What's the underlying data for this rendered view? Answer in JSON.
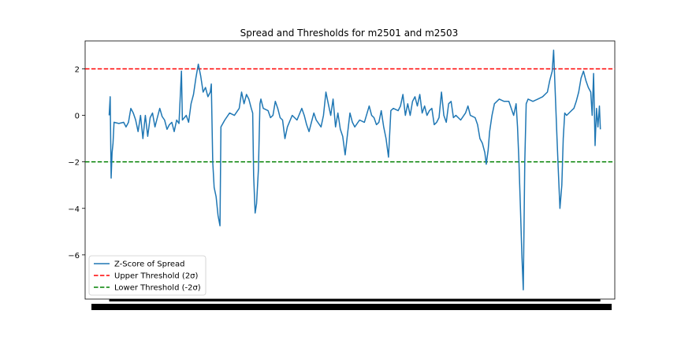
{
  "chart_data": {
    "type": "line",
    "title": "Spread and Thresholds for m2501 and m2503",
    "xlabel": "",
    "ylabel": "",
    "ylim": [
      -7.9,
      3.2
    ],
    "xlim": [
      -0.05,
      1.05
    ],
    "y_ticks": [
      2,
      0,
      -2,
      -4,
      -6
    ],
    "grid": false,
    "legend_position": "lower-left",
    "x_tick_labels_note": "dense overlapping date tick labels (illegible)",
    "series": [
      {
        "name": "Z-Score of Spread",
        "color": "#1f77b4",
        "style": "solid",
        "points": [
          [
            0.0,
            0.0
          ],
          [
            0.002,
            0.8
          ],
          [
            0.004,
            -2.7
          ],
          [
            0.006,
            -1.6
          ],
          [
            0.008,
            -1.2
          ],
          [
            0.01,
            -0.3
          ],
          [
            0.02,
            -0.35
          ],
          [
            0.03,
            -0.3
          ],
          [
            0.035,
            -0.5
          ],
          [
            0.04,
            -0.3
          ],
          [
            0.045,
            0.3
          ],
          [
            0.05,
            0.1
          ],
          [
            0.055,
            -0.2
          ],
          [
            0.06,
            -0.7
          ],
          [
            0.065,
            0.0
          ],
          [
            0.07,
            -1.0
          ],
          [
            0.075,
            0.0
          ],
          [
            0.08,
            -0.9
          ],
          [
            0.085,
            -0.1
          ],
          [
            0.09,
            0.1
          ],
          [
            0.095,
            -0.5
          ],
          [
            0.1,
            -0.1
          ],
          [
            0.105,
            0.3
          ],
          [
            0.11,
            -0.05
          ],
          [
            0.115,
            -0.2
          ],
          [
            0.12,
            -0.6
          ],
          [
            0.125,
            -0.4
          ],
          [
            0.13,
            -0.3
          ],
          [
            0.135,
            -0.7
          ],
          [
            0.14,
            -0.2
          ],
          [
            0.145,
            -0.35
          ],
          [
            0.15,
            1.9
          ],
          [
            0.152,
            -0.2
          ],
          [
            0.16,
            0.0
          ],
          [
            0.165,
            -0.3
          ],
          [
            0.17,
            0.5
          ],
          [
            0.175,
            0.9
          ],
          [
            0.18,
            1.6
          ],
          [
            0.185,
            2.2
          ],
          [
            0.19,
            1.7
          ],
          [
            0.195,
            1.0
          ],
          [
            0.2,
            1.2
          ],
          [
            0.205,
            0.8
          ],
          [
            0.21,
            1.0
          ],
          [
            0.212,
            1.35
          ],
          [
            0.215,
            -2.0
          ],
          [
            0.218,
            -3.1
          ],
          [
            0.222,
            -3.5
          ],
          [
            0.226,
            -4.3
          ],
          [
            0.23,
            -4.75
          ],
          [
            0.232,
            -0.5
          ],
          [
            0.24,
            -0.2
          ],
          [
            0.25,
            0.1
          ],
          [
            0.26,
            0.0
          ],
          [
            0.27,
            0.3
          ],
          [
            0.275,
            1.0
          ],
          [
            0.28,
            0.5
          ],
          [
            0.285,
            0.9
          ],
          [
            0.29,
            0.7
          ],
          [
            0.295,
            0.3
          ],
          [
            0.298,
            0.1
          ],
          [
            0.3,
            -2.6
          ],
          [
            0.303,
            -4.2
          ],
          [
            0.306,
            -3.8
          ],
          [
            0.31,
            -2.3
          ],
          [
            0.313,
            0.5
          ],
          [
            0.315,
            0.7
          ],
          [
            0.32,
            0.3
          ],
          [
            0.33,
            0.2
          ],
          [
            0.335,
            -0.1
          ],
          [
            0.34,
            0.0
          ],
          [
            0.345,
            0.6
          ],
          [
            0.35,
            0.3
          ],
          [
            0.355,
            -0.1
          ],
          [
            0.36,
            -0.2
          ],
          [
            0.365,
            -1.0
          ],
          [
            0.37,
            -0.5
          ],
          [
            0.38,
            0.0
          ],
          [
            0.39,
            -0.2
          ],
          [
            0.4,
            0.3
          ],
          [
            0.405,
            0.0
          ],
          [
            0.41,
            -0.4
          ],
          [
            0.415,
            -0.7
          ],
          [
            0.42,
            -0.3
          ],
          [
            0.425,
            0.1
          ],
          [
            0.43,
            -0.2
          ],
          [
            0.44,
            -0.5
          ],
          [
            0.445,
            0.0
          ],
          [
            0.45,
            1.0
          ],
          [
            0.455,
            0.5
          ],
          [
            0.46,
            0.0
          ],
          [
            0.465,
            0.7
          ],
          [
            0.47,
            -0.5
          ],
          [
            0.475,
            0.1
          ],
          [
            0.48,
            -0.6
          ],
          [
            0.485,
            -0.9
          ],
          [
            0.49,
            -1.7
          ],
          [
            0.495,
            -0.8
          ],
          [
            0.5,
            0.1
          ],
          [
            0.505,
            -0.3
          ],
          [
            0.51,
            -0.5
          ],
          [
            0.52,
            -0.2
          ],
          [
            0.53,
            -0.3
          ],
          [
            0.54,
            0.4
          ],
          [
            0.545,
            0.0
          ],
          [
            0.55,
            -0.1
          ],
          [
            0.555,
            -0.4
          ],
          [
            0.56,
            -0.3
          ],
          [
            0.565,
            0.2
          ],
          [
            0.57,
            -0.5
          ],
          [
            0.575,
            -1.0
          ],
          [
            0.58,
            -1.8
          ],
          [
            0.585,
            0.2
          ],
          [
            0.59,
            0.3
          ],
          [
            0.6,
            0.2
          ],
          [
            0.605,
            0.4
          ],
          [
            0.61,
            0.9
          ],
          [
            0.615,
            0.0
          ],
          [
            0.62,
            0.5
          ],
          [
            0.625,
            0.0
          ],
          [
            0.63,
            0.6
          ],
          [
            0.635,
            0.8
          ],
          [
            0.64,
            0.4
          ],
          [
            0.645,
            0.9
          ],
          [
            0.65,
            0.1
          ],
          [
            0.655,
            0.4
          ],
          [
            0.66,
            0.0
          ],
          [
            0.665,
            0.2
          ],
          [
            0.67,
            0.3
          ],
          [
            0.675,
            -0.4
          ],
          [
            0.68,
            -0.3
          ],
          [
            0.685,
            -0.1
          ],
          [
            0.69,
            1.0
          ],
          [
            0.695,
            0.0
          ],
          [
            0.7,
            -0.3
          ],
          [
            0.705,
            0.5
          ],
          [
            0.71,
            0.6
          ],
          [
            0.715,
            -0.1
          ],
          [
            0.72,
            0.0
          ],
          [
            0.73,
            -0.2
          ],
          [
            0.74,
            0.1
          ],
          [
            0.745,
            0.4
          ],
          [
            0.75,
            0.0
          ],
          [
            0.76,
            -0.1
          ],
          [
            0.765,
            -0.4
          ],
          [
            0.77,
            -1.0
          ],
          [
            0.775,
            -1.2
          ],
          [
            0.78,
            -1.6
          ],
          [
            0.783,
            -2.1
          ],
          [
            0.787,
            -1.5
          ],
          [
            0.79,
            -0.7
          ],
          [
            0.795,
            0.0
          ],
          [
            0.8,
            0.5
          ],
          [
            0.81,
            0.7
          ],
          [
            0.82,
            0.6
          ],
          [
            0.83,
            0.6
          ],
          [
            0.84,
            0.0
          ],
          [
            0.845,
            0.5
          ],
          [
            0.848,
            -0.5
          ],
          [
            0.851,
            -2.0
          ],
          [
            0.854,
            -4.0
          ],
          [
            0.857,
            -6.0
          ],
          [
            0.86,
            -7.5
          ],
          [
            0.863,
            -2.0
          ],
          [
            0.866,
            0.5
          ],
          [
            0.87,
            0.7
          ],
          [
            0.88,
            0.6
          ],
          [
            0.89,
            0.7
          ],
          [
            0.9,
            0.8
          ],
          [
            0.91,
            1.0
          ],
          [
            0.915,
            1.5
          ],
          [
            0.92,
            1.9
          ],
          [
            0.923,
            2.8
          ],
          [
            0.926,
            1.2
          ],
          [
            0.93,
            -1.0
          ],
          [
            0.933,
            -2.5
          ],
          [
            0.936,
            -4.0
          ],
          [
            0.94,
            -3.0
          ],
          [
            0.943,
            -1.0
          ],
          [
            0.946,
            0.1
          ],
          [
            0.95,
            0.0
          ],
          [
            0.96,
            0.2
          ],
          [
            0.965,
            0.3
          ],
          [
            0.97,
            0.6
          ],
          [
            0.975,
            1.0
          ],
          [
            0.98,
            1.6
          ],
          [
            0.985,
            1.9
          ],
          [
            0.99,
            1.5
          ],
          [
            0.995,
            1.2
          ],
          [
            1.0,
            1.0
          ],
          [
            1.003,
            0.0
          ],
          [
            1.006,
            1.8
          ],
          [
            1.009,
            -1.3
          ],
          [
            1.012,
            0.3
          ],
          [
            1.015,
            -0.5
          ],
          [
            1.018,
            0.4
          ],
          [
            1.02,
            -0.6
          ]
        ]
      },
      {
        "name": "Upper Threshold (2σ)",
        "color": "#ff0000",
        "style": "dashed",
        "value": 2
      },
      {
        "name": "Lower Threshold (-2σ)",
        "color": "#008000",
        "style": "dashed",
        "value": -2
      }
    ]
  }
}
